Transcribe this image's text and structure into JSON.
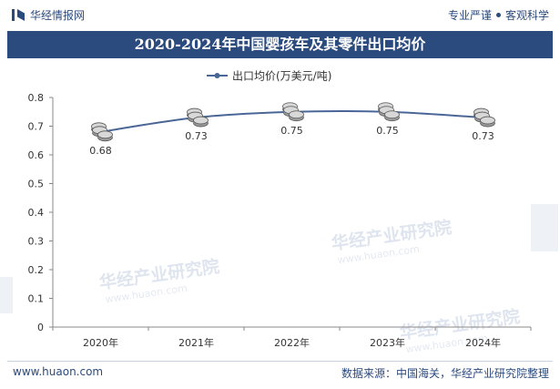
{
  "header": {
    "brand": "华经情报网",
    "tagline_left": "专业严谨",
    "tagline_right": "客观科学"
  },
  "chart_data": {
    "type": "line",
    "title": "2020-2024年中国婴孩车及其零件出口均价",
    "legend": "出口均价(万美元/吨)",
    "legend_position": "top-center",
    "categories": [
      "2020年",
      "2021年",
      "2022年",
      "2023年",
      "2024年"
    ],
    "series": [
      {
        "name": "出口均价(万美元/吨)",
        "values": [
          0.68,
          0.73,
          0.75,
          0.75,
          0.73
        ]
      }
    ],
    "data_labels": [
      "0.68",
      "0.73",
      "0.75",
      "0.75",
      "0.73"
    ],
    "y_ticks": [
      "0",
      "0.1",
      "0.2",
      "0.3",
      "0.4",
      "0.5",
      "0.6",
      "0.7",
      "0.8"
    ],
    "ylim": [
      0,
      0.8
    ],
    "grid": false,
    "line_color": "#4a6696"
  },
  "watermark": {
    "text": "华经产业研究院",
    "url_text": "www.huaon.com"
  },
  "footer": {
    "website": "www.huaon.com",
    "source": "数据来源：中国海关，华经产业研究院整理"
  }
}
